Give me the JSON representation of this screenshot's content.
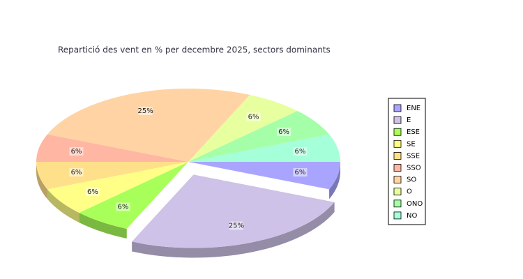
{
  "chart_data": {
    "type": "pie",
    "title": "Repartició des vent en % per decembre 2025, sectors dominants",
    "categories": [
      "ENE",
      "E",
      "ESE",
      "SE",
      "SSE",
      "SSO",
      "SO",
      "O",
      "ONO",
      "NO"
    ],
    "values": [
      6,
      25,
      6,
      6,
      6,
      6,
      25,
      6,
      6,
      6
    ],
    "value_labels": [
      "6%",
      "25%",
      "6%",
      "6%",
      "6%",
      "6%",
      "25%",
      "6%",
      "6%",
      "6%"
    ],
    "colors": [
      "#a9a5ff",
      "#cfc2e8",
      "#a9ff5a",
      "#ffff88",
      "#ffe08a",
      "#ffb6a3",
      "#ffd3a3",
      "#e8ffa0",
      "#a5ffa8",
      "#a5ffd8"
    ],
    "exploded": [
      "E"
    ]
  }
}
